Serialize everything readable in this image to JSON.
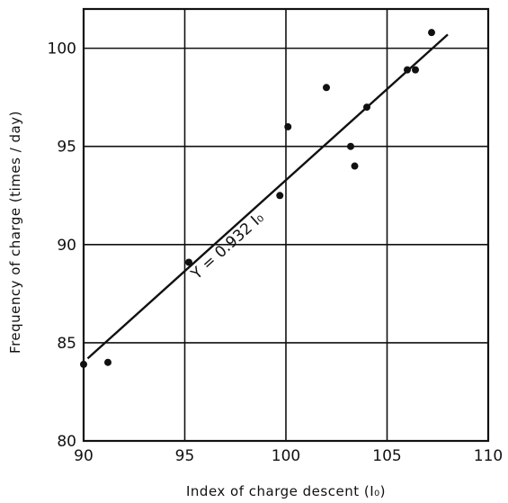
{
  "chart_data": {
    "type": "scatter",
    "xlabel": "Index of charge descent (I₀)",
    "ylabel": "Frequency of charge (times / day)",
    "xlim": [
      90,
      110
    ],
    "ylim": [
      80,
      102
    ],
    "x_ticks": [
      90,
      95,
      100,
      105,
      110
    ],
    "y_ticks": [
      80,
      85,
      90,
      95,
      100
    ],
    "x_tick_labels": [
      "90",
      "95",
      "100",
      "105",
      "110"
    ],
    "y_tick_labels": [
      "80",
      "85",
      "90",
      "95",
      "100"
    ],
    "grid": true,
    "points": [
      {
        "x": 90.0,
        "y": 83.9
      },
      {
        "x": 91.2,
        "y": 84.0
      },
      {
        "x": 95.2,
        "y": 89.1
      },
      {
        "x": 99.7,
        "y": 92.5
      },
      {
        "x": 100.1,
        "y": 96.0
      },
      {
        "x": 102.0,
        "y": 98.0
      },
      {
        "x": 103.2,
        "y": 95.0
      },
      {
        "x": 103.4,
        "y": 94.0
      },
      {
        "x": 104.0,
        "y": 97.0
      },
      {
        "x": 106.0,
        "y": 98.9
      },
      {
        "x": 106.4,
        "y": 98.9
      },
      {
        "x": 107.2,
        "y": 100.8
      }
    ],
    "fit_line": {
      "x": [
        90.2,
        108.0
      ],
      "y": [
        84.2,
        100.7
      ]
    },
    "annotation": "Y = 0.932 I₀"
  }
}
